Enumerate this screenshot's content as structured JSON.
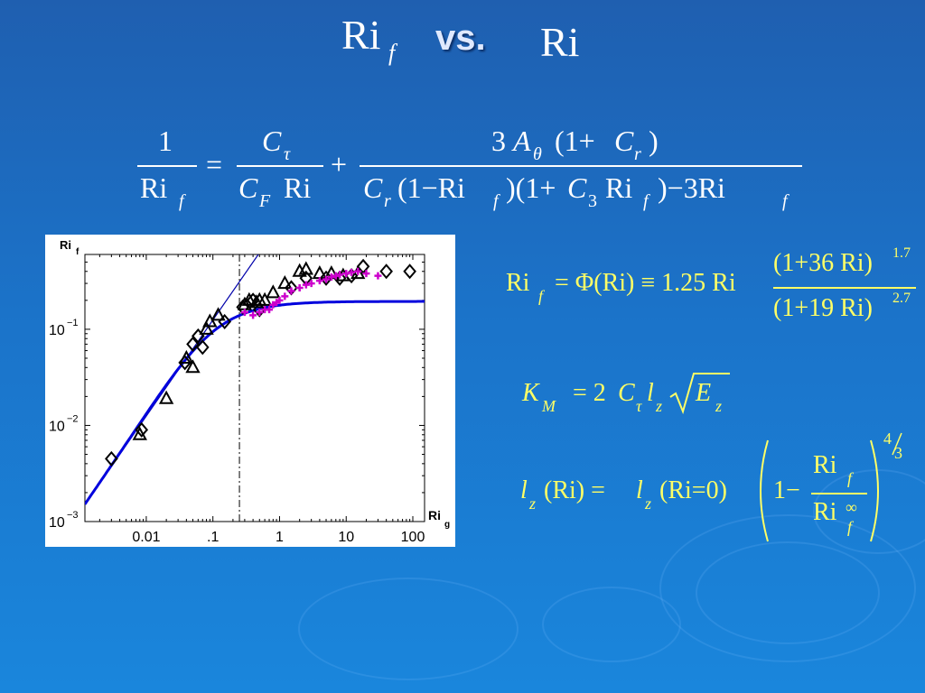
{
  "title": {
    "lhs": "Ri",
    "lhs_sub": "f",
    "vs": "vs.",
    "rhs": "Ri"
  },
  "colors": {
    "background": "#1b73c9",
    "formula_white": "#ffffff",
    "formula_yellow": "#ffff66",
    "fit_curve": "#0000dd",
    "magenta_data": "#cc00cc",
    "guide_line": "#0000aa"
  },
  "eq_main": {
    "l_num": "1",
    "l_den": "Ri",
    "l_den_sub": "f",
    "eq": "=",
    "t1_num": "C",
    "t1_num_sub": "τ",
    "t1_den_a": "C",
    "t1_den_a_sub": "F",
    "t1_den_b": "Ri",
    "plus": "+",
    "t2_num_a": "3",
    "t2_num_b": "A",
    "t2_num_b_sub": "θ",
    "t2_num_c": "(1+",
    "t2_num_d": "C",
    "t2_num_d_sub": "r",
    "t2_num_e": ")",
    "t2_den_a": "C",
    "t2_den_a_sub": "r",
    "t2_den_b": "(1−Ri",
    "t2_den_b_sub": "f",
    "t2_den_c": ")(1+",
    "t2_den_d": "C",
    "t2_den_d_sub": "3",
    "t2_den_e": "Ri",
    "t2_den_e_sub": "f",
    "t2_den_f": ")−3Ri",
    "t2_den_f_sub": "f"
  },
  "eq_phi": {
    "lhs": "Ri",
    "lhs_sub": "f",
    "rel": "= Φ(Ri) ≡ 1.25 Ri",
    "num": "(1+36 Ri)",
    "num_exp": "1.7",
    "den": "(1+19 Ri)",
    "den_exp": "2.7"
  },
  "eq_km": {
    "k": "K",
    "k_sub": "M",
    "eq": "= 2",
    "c": "C",
    "c_sub": "τ",
    "l": "l",
    "l_sub": "z",
    "e": "E",
    "e_sub": "z"
  },
  "eq_lz": {
    "lhs_l": "l",
    "lhs_l_sub": "z",
    "lhs_arg": "(Ri) =",
    "rhs_l": "l",
    "rhs_l_sub": "z",
    "rhs_arg": "(Ri=0)",
    "one_minus": "1−",
    "num": "Ri",
    "num_sub": "f",
    "den": "Ri",
    "den_sub": "f",
    "den_sup": "∞",
    "exp_num": "4",
    "exp_den": "3"
  },
  "chart_data": {
    "type": "scatter",
    "xscale": "log",
    "yscale": "log",
    "xlim": [
      0.0012,
      150
    ],
    "ylim": [
      0.001,
      0.6
    ],
    "xlabel": "Ri",
    "xlabel_sub": "g",
    "ylabel": "Ri",
    "ylabel_sub": "f",
    "x_ticks": [
      {
        "v": 0.01,
        "label": "0.01"
      },
      {
        "v": 0.1,
        "label": ".1"
      },
      {
        "v": 1,
        "label": "1"
      },
      {
        "v": 10,
        "label": "10"
      },
      {
        "v": 100,
        "label": "100"
      }
    ],
    "y_ticks": [
      {
        "v": 0.1,
        "base": "10",
        "exp": "−1"
      },
      {
        "v": 0.01,
        "base": "10",
        "exp": "−2"
      },
      {
        "v": 0.001,
        "base": "10",
        "exp": "−3"
      }
    ],
    "vline_x": 0.25,
    "guide_line": {
      "slope": 1.25
    },
    "series": [
      {
        "marker": "diamond",
        "points": [
          [
            0.003,
            0.0045
          ],
          [
            0.0085,
            0.009
          ],
          [
            0.038,
            0.045
          ],
          [
            0.05,
            0.07
          ],
          [
            0.06,
            0.085
          ],
          [
            0.07,
            0.065
          ],
          [
            0.15,
            0.12
          ],
          [
            0.28,
            0.17
          ],
          [
            0.4,
            0.2
          ],
          [
            0.5,
            0.16
          ],
          [
            1.5,
            0.27
          ],
          [
            2.5,
            0.34
          ],
          [
            5,
            0.34
          ],
          [
            8,
            0.34
          ],
          [
            12,
            0.36
          ],
          [
            18,
            0.45
          ],
          [
            40,
            0.4
          ],
          [
            90,
            0.4
          ]
        ]
      },
      {
        "marker": "triangle",
        "points": [
          [
            0.008,
            0.008
          ],
          [
            0.02,
            0.019
          ],
          [
            0.04,
            0.05
          ],
          [
            0.05,
            0.04
          ],
          [
            0.08,
            0.1
          ],
          [
            0.09,
            0.12
          ],
          [
            0.12,
            0.14
          ],
          [
            0.3,
            0.18
          ],
          [
            0.35,
            0.2
          ],
          [
            0.45,
            0.19
          ],
          [
            0.5,
            0.2
          ],
          [
            0.6,
            0.2
          ],
          [
            0.8,
            0.24
          ],
          [
            1.2,
            0.3
          ],
          [
            2,
            0.4
          ],
          [
            2.5,
            0.42
          ],
          [
            4,
            0.38
          ],
          [
            6,
            0.38
          ],
          [
            9,
            0.36
          ],
          [
            15,
            0.38
          ]
        ]
      },
      {
        "marker": "plus",
        "points": [
          [
            0.3,
            0.15
          ],
          [
            0.4,
            0.14
          ],
          [
            0.5,
            0.15
          ],
          [
            0.6,
            0.16
          ],
          [
            0.7,
            0.16
          ],
          [
            0.8,
            0.18
          ],
          [
            0.9,
            0.19
          ],
          [
            1,
            0.2
          ],
          [
            1.2,
            0.22
          ],
          [
            1.5,
            0.25
          ],
          [
            2,
            0.27
          ],
          [
            2.5,
            0.29
          ],
          [
            3,
            0.3
          ],
          [
            4,
            0.32
          ],
          [
            5,
            0.33
          ],
          [
            6,
            0.35
          ],
          [
            7,
            0.36
          ],
          [
            8,
            0.37
          ],
          [
            10,
            0.38
          ],
          [
            12,
            0.39
          ],
          [
            15,
            0.4
          ],
          [
            20,
            0.38
          ],
          [
            30,
            0.36
          ]
        ]
      }
    ]
  }
}
